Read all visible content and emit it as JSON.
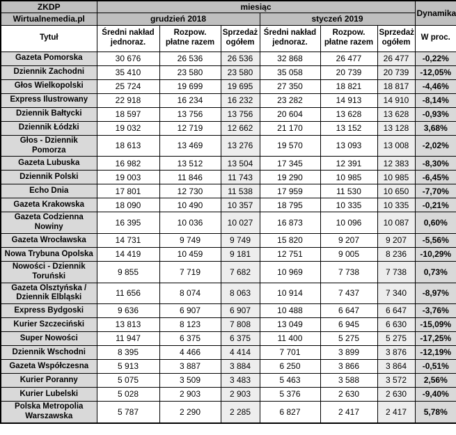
{
  "header": {
    "source": "ZKDP",
    "site": "Wirtualnemedia.pl",
    "month_label": "miesiąc",
    "periods": [
      "grudzień 2018",
      "styczeń 2019"
    ],
    "dynamics_label": "Dynamika",
    "title_col_label": "Tytuł",
    "metrics": [
      "Średni nakład jednoraz.",
      "Rozpow. płatne razem",
      "Sprzedaż ogółem"
    ],
    "percent_col_label": "W proc."
  },
  "colors": {
    "header_gray": "#bfbfbf",
    "title_col_gray": "#d9d9d9",
    "sales_col_gray": "#ededed",
    "percent_col_gray": "#d9d9d9",
    "border": "#000000",
    "text": "#000000"
  },
  "chart_data": {
    "type": "table",
    "title": "ZKDP / Wirtualnemedia.pl — miesiąc: grudzień 2018 vs styczeń 2019",
    "columns": [
      "Tytuł",
      "grudzień 2018 — Średni nakład jednoraz.",
      "grudzień 2018 — Rozpow. płatne razem",
      "grudzień 2018 — Sprzedaż ogółem",
      "styczeń 2019 — Średni nakład jednoraz.",
      "styczeń 2019 — Rozpow. płatne razem",
      "styczeń 2019 — Sprzedaż ogółem",
      "Dynamika — W proc."
    ],
    "rows": [
      {
        "title": "Gazeta Pomorska",
        "values": [
          "30 676",
          "26 536",
          "26 536",
          "32 868",
          "26 477",
          "26 477"
        ],
        "dynamics": "-0,22%"
      },
      {
        "title": "Dziennik Zachodni",
        "values": [
          "35 410",
          "23 580",
          "23 580",
          "35 058",
          "20 739",
          "20 739"
        ],
        "dynamics": "-12,05%"
      },
      {
        "title": "Głos Wielkopolski",
        "values": [
          "25 724",
          "19 699",
          "19 695",
          "27 350",
          "18 821",
          "18 817"
        ],
        "dynamics": "-4,46%"
      },
      {
        "title": "Express Ilustrowany",
        "values": [
          "22 918",
          "16 234",
          "16 232",
          "23 282",
          "14 913",
          "14 910"
        ],
        "dynamics": "-8,14%"
      },
      {
        "title": "Dziennik Bałtycki",
        "values": [
          "18 597",
          "13 756",
          "13 756",
          "20 604",
          "13 628",
          "13 628"
        ],
        "dynamics": "-0,93%"
      },
      {
        "title": "Dziennik Łódzki",
        "values": [
          "19 032",
          "12 719",
          "12 662",
          "21 170",
          "13 152",
          "13 128"
        ],
        "dynamics": "3,68%"
      },
      {
        "title": "Głos - Dziennik Pomorza",
        "values": [
          "18 613",
          "13 469",
          "13 276",
          "19 570",
          "13 093",
          "13 008"
        ],
        "dynamics": "-2,02%"
      },
      {
        "title": "Gazeta Lubuska",
        "values": [
          "16 982",
          "13 512",
          "13 504",
          "17 345",
          "12 391",
          "12 383"
        ],
        "dynamics": "-8,30%"
      },
      {
        "title": "Dziennik Polski",
        "values": [
          "19 003",
          "11 846",
          "11 743",
          "19 290",
          "10 985",
          "10 985"
        ],
        "dynamics": "-6,45%"
      },
      {
        "title": "Echo Dnia",
        "values": [
          "17 801",
          "12 730",
          "11 538",
          "17 959",
          "11 530",
          "10 650"
        ],
        "dynamics": "-7,70%"
      },
      {
        "title": "Gazeta Krakowska",
        "values": [
          "18 090",
          "10 490",
          "10 357",
          "18 795",
          "10 335",
          "10 335"
        ],
        "dynamics": "-0,21%"
      },
      {
        "title": "Gazeta Codzienna Nowiny",
        "values": [
          "16 395",
          "10 036",
          "10 027",
          "16 873",
          "10 096",
          "10 087"
        ],
        "dynamics": "0,60%"
      },
      {
        "title": "Gazeta Wrocławska",
        "values": [
          "14 731",
          "9 749",
          "9 749",
          "15 820",
          "9 207",
          "9 207"
        ],
        "dynamics": "-5,56%"
      },
      {
        "title": "Nowa Trybuna Opolska",
        "values": [
          "14 419",
          "10 459",
          "9 181",
          "12 751",
          "9 005",
          "8 236"
        ],
        "dynamics": "-10,29%"
      },
      {
        "title": "Nowości - Dziennik Toruński",
        "values": [
          "9 855",
          "7 719",
          "7 682",
          "10 969",
          "7 738",
          "7 738"
        ],
        "dynamics": "0,73%"
      },
      {
        "title": "Gazeta Olsztyńska / Dziennik Elbląski",
        "values": [
          "11 656",
          "8 074",
          "8 063",
          "10 914",
          "7 437",
          "7 340"
        ],
        "dynamics": "-8,97%"
      },
      {
        "title": "Express Bydgoski",
        "values": [
          "9 636",
          "6 907",
          "6 907",
          "10 488",
          "6 647",
          "6 647"
        ],
        "dynamics": "-3,76%"
      },
      {
        "title": "Kurier Szczeciński",
        "values": [
          "13 813",
          "8 123",
          "7 808",
          "13 049",
          "6 945",
          "6 630"
        ],
        "dynamics": "-15,09%"
      },
      {
        "title": "Super Nowości",
        "values": [
          "11 947",
          "6 375",
          "6 375",
          "11 400",
          "5 275",
          "5 275"
        ],
        "dynamics": "-17,25%"
      },
      {
        "title": "Dziennik Wschodni",
        "values": [
          "8 395",
          "4 466",
          "4 414",
          "7 701",
          "3 899",
          "3 876"
        ],
        "dynamics": "-12,19%"
      },
      {
        "title": "Gazeta Współczesna",
        "values": [
          "5 913",
          "3 887",
          "3 884",
          "6 250",
          "3 866",
          "3 864"
        ],
        "dynamics": "-0,51%"
      },
      {
        "title": "Kurier Poranny",
        "values": [
          "5 075",
          "3 509",
          "3 483",
          "5 463",
          "3 588",
          "3 572"
        ],
        "dynamics": "2,56%"
      },
      {
        "title": "Kurier Lubelski",
        "values": [
          "5 028",
          "2 903",
          "2 903",
          "5 376",
          "2 630",
          "2 630"
        ],
        "dynamics": "-9,40%"
      },
      {
        "title": "Polska Metropolia Warszawska",
        "values": [
          "5 787",
          "2 290",
          "2 285",
          "6 827",
          "2 417",
          "2 417"
        ],
        "dynamics": "5,78%"
      }
    ]
  }
}
